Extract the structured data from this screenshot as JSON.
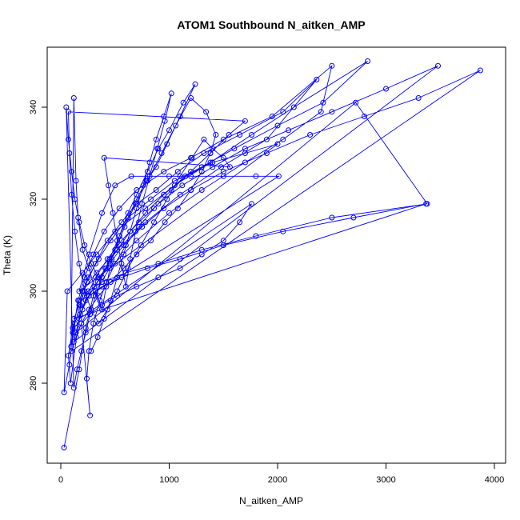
{
  "chart_data": {
    "type": "line",
    "title": "ATOM1 Southbound N_aitken_AMP",
    "xlabel": "N_aitken_AMP",
    "ylabel": "Theta (K)",
    "xlim": [
      0,
      4000
    ],
    "ylim": [
      264,
      353
    ],
    "x_ticks": [
      0,
      1000,
      2000,
      3000,
      4000
    ],
    "y_ticks": [
      280,
      300,
      320,
      340
    ],
    "grid": false,
    "series_color": "#0000FF",
    "series": [
      {
        "points": [
          [
            30,
            266
          ],
          [
            170,
            283
          ],
          [
            230,
            292
          ],
          [
            300,
            299
          ],
          [
            450,
            305
          ],
          [
            700,
            311
          ],
          [
            1000,
            317
          ],
          [
            1300,
            322
          ],
          [
            1700,
            328
          ],
          [
            2050,
            333
          ],
          [
            2400,
            339
          ],
          [
            2500,
            349
          ],
          [
            1950,
            338
          ],
          [
            1500,
            333
          ],
          [
            1200,
            329
          ],
          [
            950,
            326
          ],
          [
            700,
            322
          ],
          [
            540,
            318
          ],
          [
            400,
            313
          ],
          [
            300,
            308
          ],
          [
            220,
            303
          ],
          [
            160,
            298
          ],
          [
            110,
            291
          ],
          [
            80,
            284
          ],
          [
            30,
            278
          ],
          [
            60,
            300
          ],
          [
            200,
            304
          ],
          [
            330,
            308
          ],
          [
            500,
            313
          ],
          [
            780,
            318
          ],
          [
            1050,
            323
          ],
          [
            1380,
            328
          ],
          [
            1760,
            334
          ],
          [
            2150,
            340
          ],
          [
            2830,
            350
          ],
          [
            2420,
            341
          ],
          [
            2000,
            336
          ],
          [
            1600,
            331
          ],
          [
            1300,
            327
          ],
          [
            1050,
            324
          ],
          [
            830,
            320
          ],
          [
            620,
            316
          ],
          [
            460,
            311
          ],
          [
            350,
            307
          ],
          [
            250,
            303
          ],
          [
            170,
            298
          ],
          [
            110,
            292
          ],
          [
            70,
            286
          ],
          [
            90,
            280
          ],
          [
            200,
            300
          ],
          [
            330,
            304
          ],
          [
            520,
            309
          ],
          [
            780,
            315
          ],
          [
            1100,
            321
          ],
          [
            1480,
            327
          ],
          [
            1900,
            333
          ],
          [
            2360,
            346
          ],
          [
            2050,
            339
          ],
          [
            1650,
            334
          ],
          [
            1320,
            330
          ],
          [
            1080,
            326
          ],
          [
            880,
            322
          ],
          [
            700,
            319
          ],
          [
            560,
            315
          ],
          [
            430,
            311
          ],
          [
            320,
            306
          ],
          [
            240,
            302
          ],
          [
            180,
            297
          ],
          [
            130,
            293
          ],
          [
            95,
            288
          ],
          [
            120,
            342
          ],
          [
            140,
            324
          ],
          [
            160,
            316
          ],
          [
            200,
            309
          ],
          [
            260,
            305
          ],
          [
            320,
            300
          ],
          [
            380,
            296
          ],
          [
            420,
            301
          ],
          [
            470,
            307
          ],
          [
            540,
            312
          ],
          [
            620,
            317
          ],
          [
            700,
            321
          ],
          [
            800,
            326
          ],
          [
            900,
            331
          ],
          [
            1000,
            335
          ],
          [
            1130,
            341
          ],
          [
            1240,
            345
          ],
          [
            1100,
            338
          ],
          [
            980,
            332
          ],
          [
            880,
            327
          ],
          [
            790,
            324
          ],
          [
            700,
            320
          ],
          [
            620,
            316
          ],
          [
            540,
            312
          ],
          [
            450,
            307
          ],
          [
            380,
            303
          ],
          [
            320,
            299
          ],
          [
            270,
            295
          ],
          [
            230,
            291
          ],
          [
            190,
            287
          ],
          [
            150,
            283
          ],
          [
            120,
            279
          ],
          [
            50,
            340
          ],
          [
            70,
            333
          ],
          [
            100,
            326
          ],
          [
            130,
            320
          ],
          [
            170,
            315
          ],
          [
            220,
            310
          ],
          [
            280,
            306
          ],
          [
            350,
            303
          ],
          [
            420,
            305
          ],
          [
            500,
            309
          ],
          [
            590,
            314
          ],
          [
            690,
            319
          ],
          [
            800,
            324
          ],
          [
            930,
            330
          ],
          [
            1060,
            336
          ],
          [
            1200,
            342
          ],
          [
            1340,
            339
          ],
          [
            1430,
            334
          ],
          [
            1380,
            330
          ],
          [
            1300,
            326
          ],
          [
            1200,
            322
          ],
          [
            1080,
            318
          ],
          [
            960,
            315
          ],
          [
            830,
            311
          ],
          [
            700,
            308
          ],
          [
            580,
            305
          ],
          [
            460,
            302
          ],
          [
            350,
            299
          ],
          [
            260,
            296
          ],
          [
            190,
            293
          ],
          [
            140,
            290
          ],
          [
            100,
            287
          ],
          [
            3870,
            348
          ],
          [
            3300,
            342
          ],
          [
            2800,
            338
          ],
          [
            2300,
            334
          ],
          [
            1900,
            330
          ],
          [
            1500,
            326
          ],
          [
            1200,
            322
          ],
          [
            950,
            318
          ],
          [
            750,
            314
          ],
          [
            580,
            310
          ],
          [
            450,
            306
          ],
          [
            340,
            302
          ],
          [
            260,
            299
          ],
          [
            200,
            296
          ],
          [
            150,
            292
          ],
          [
            120,
            289
          ],
          [
            3480,
            349
          ],
          [
            3000,
            344
          ],
          [
            2500,
            339
          ],
          [
            2100,
            335
          ],
          [
            1700,
            331
          ],
          [
            1400,
            327
          ],
          [
            1120,
            323
          ],
          [
            900,
            319
          ],
          [
            720,
            315
          ],
          [
            560,
            311
          ],
          [
            430,
            307
          ],
          [
            320,
            303
          ],
          [
            240,
            299
          ],
          [
            180,
            295
          ],
          [
            140,
            291
          ],
          [
            2720,
            341
          ],
          [
            3380,
            319
          ],
          [
            2500,
            316
          ],
          [
            1800,
            312
          ],
          [
            1300,
            309
          ],
          [
            900,
            306
          ],
          [
            600,
            304
          ],
          [
            380,
            302
          ],
          [
            250,
            300
          ],
          [
            170,
            297
          ],
          [
            120,
            294
          ],
          [
            3370,
            319
          ],
          [
            2700,
            316
          ],
          [
            2050,
            313
          ],
          [
            1500,
            310
          ],
          [
            1100,
            307
          ],
          [
            800,
            305
          ],
          [
            560,
            303
          ],
          [
            380,
            301
          ],
          [
            260,
            299
          ],
          [
            2010,
            325
          ],
          [
            1800,
            325
          ],
          [
            1500,
            325
          ],
          [
            1200,
            325
          ],
          [
            1000,
            325
          ],
          [
            800,
            325
          ],
          [
            650,
            325
          ],
          [
            500,
            323
          ],
          [
            380,
            317
          ],
          [
            260,
            308
          ],
          [
            170,
            300
          ],
          [
            2000,
            332
          ],
          [
            1700,
            330
          ],
          [
            1400,
            328
          ],
          [
            1150,
            325
          ],
          [
            950,
            321
          ],
          [
            780,
            317
          ],
          [
            640,
            313
          ],
          [
            520,
            309
          ],
          [
            410,
            305
          ],
          [
            310,
            301
          ],
          [
            230,
            298
          ],
          [
            170,
            294
          ],
          [
            1760,
            319
          ],
          [
            1650,
            315
          ],
          [
            1500,
            311
          ],
          [
            1300,
            308
          ],
          [
            1100,
            305
          ],
          [
            900,
            303
          ],
          [
            700,
            301
          ],
          [
            520,
            299
          ],
          [
            380,
            297
          ],
          [
            270,
            295
          ],
          [
            190,
            293
          ],
          [
            270,
            273
          ],
          [
            240,
            281
          ],
          [
            260,
            287
          ],
          [
            300,
            293
          ],
          [
            360,
            298
          ],
          [
            420,
            302
          ],
          [
            500,
            306
          ],
          [
            600,
            310
          ],
          [
            720,
            314
          ],
          [
            860,
            318
          ],
          [
            1020,
            322
          ],
          [
            1200,
            326
          ],
          [
            1380,
            330
          ],
          [
            1550,
            334
          ],
          [
            1700,
            337
          ],
          [
            70,
            339
          ],
          [
            80,
            330
          ],
          [
            100,
            321
          ],
          [
            130,
            313
          ],
          [
            170,
            306
          ],
          [
            220,
            300
          ],
          [
            280,
            296
          ],
          [
            350,
            293
          ],
          [
            430,
            296
          ],
          [
            520,
            300
          ],
          [
            620,
            305
          ],
          [
            740,
            310
          ],
          [
            860,
            315
          ],
          [
            980,
            320
          ],
          [
            1100,
            325
          ],
          [
            1210,
            329
          ],
          [
            1320,
            333
          ],
          [
            1400,
            331
          ],
          [
            1500,
            329
          ],
          [
            1560,
            327
          ],
          [
            400,
            329
          ],
          [
            440,
            323
          ],
          [
            480,
            317
          ],
          [
            520,
            311
          ],
          [
            560,
            306
          ],
          [
            600,
            301
          ],
          [
            640,
            307
          ],
          [
            690,
            313
          ],
          [
            750,
            319
          ],
          [
            820,
            325
          ],
          [
            890,
            331
          ],
          [
            960,
            337
          ],
          [
            1020,
            343
          ],
          [
            950,
            338
          ],
          [
            880,
            333
          ],
          [
            820,
            328
          ],
          [
            760,
            323
          ],
          [
            700,
            318
          ],
          [
            640,
            313
          ],
          [
            580,
            308
          ],
          [
            520,
            303
          ],
          [
            460,
            298
          ],
          [
            400,
            294
          ],
          [
            340,
            290
          ],
          [
            280,
            287
          ]
        ]
      }
    ]
  }
}
